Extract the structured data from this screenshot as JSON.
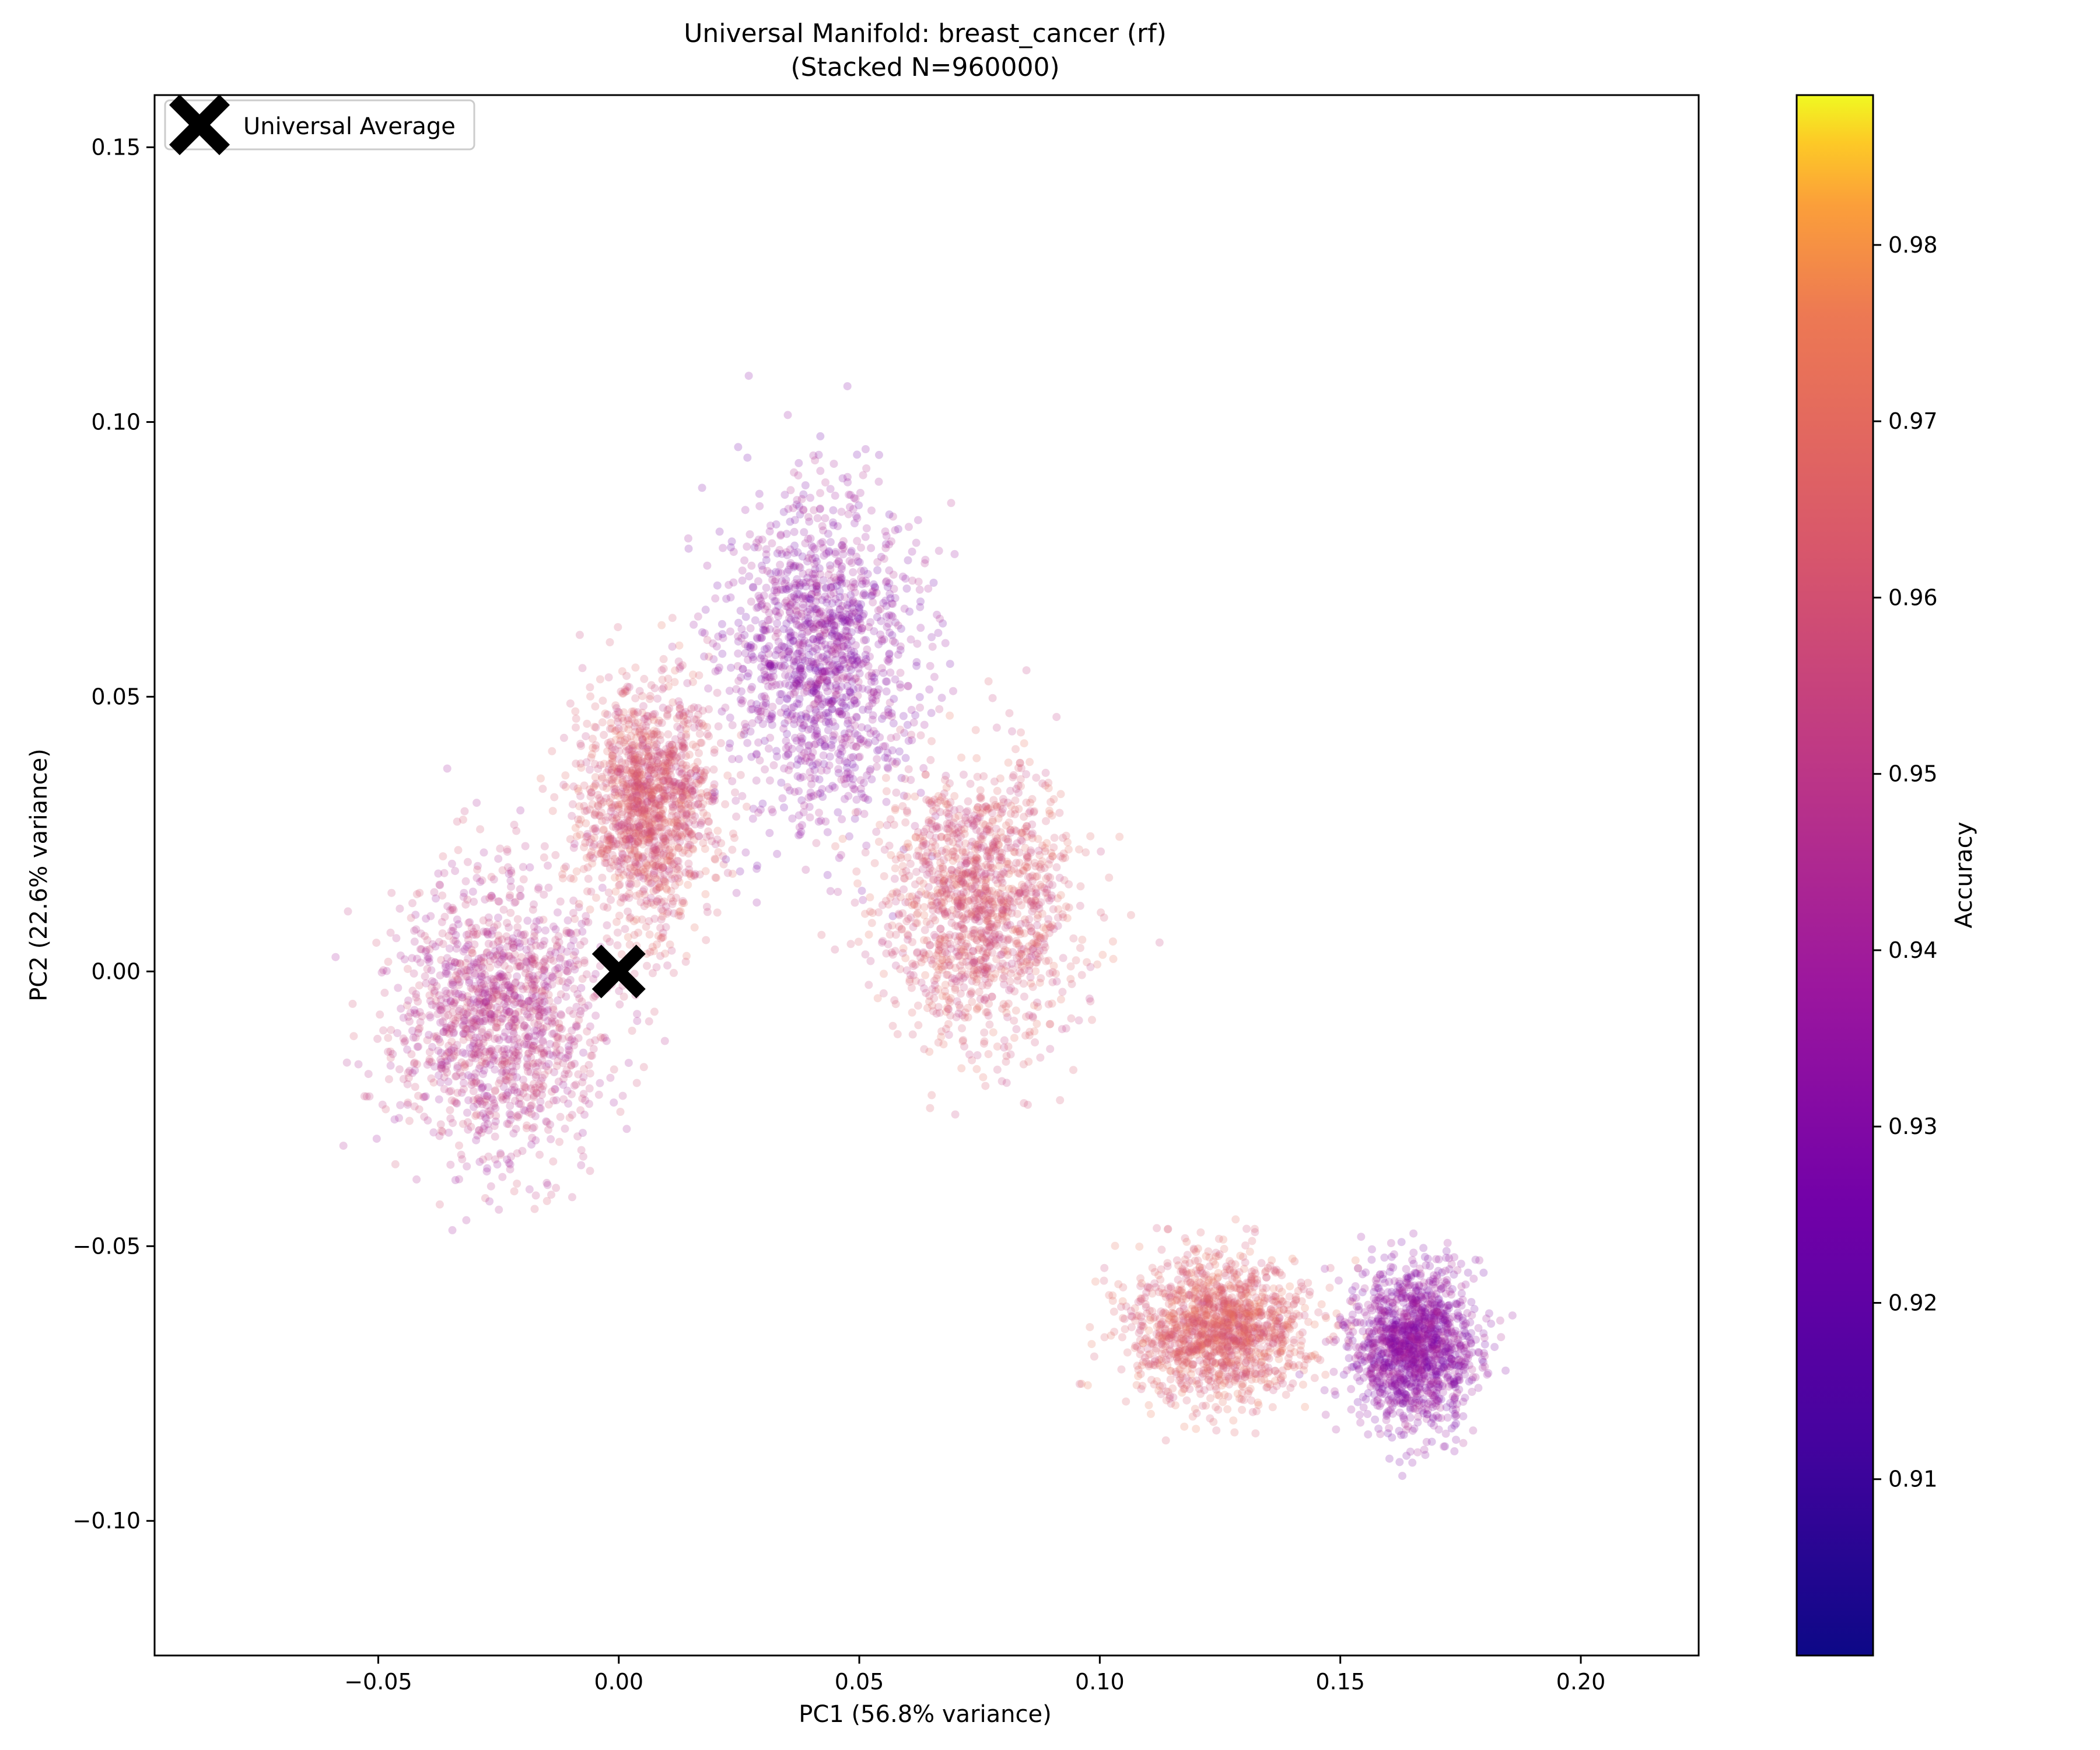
{
  "chart_data": {
    "type": "scatter",
    "title": "Universal Manifold: breast_cancer (rf)",
    "subtitle": "(Stacked N=960000)",
    "xlabel": "PC1 (56.8% variance)",
    "ylabel": "PC2 (22.6% variance)",
    "colorbar_label": "Accuracy",
    "colormap": "plasma",
    "xlim": [
      -0.0965,
      0.2245
    ],
    "ylim": [
      -0.1245,
      0.1595
    ],
    "x_ticks": [
      {
        "value": -0.05,
        "label": "−0.05"
      },
      {
        "value": 0.0,
        "label": "0.00"
      },
      {
        "value": 0.05,
        "label": "0.05"
      },
      {
        "value": 0.1,
        "label": "0.10"
      },
      {
        "value": 0.15,
        "label": "0.15"
      },
      {
        "value": 0.2,
        "label": "0.20"
      }
    ],
    "y_ticks": [
      {
        "value": -0.1,
        "label": "−0.10"
      },
      {
        "value": -0.05,
        "label": "−0.05"
      },
      {
        "value": 0.0,
        "label": "0.00"
      },
      {
        "value": 0.05,
        "label": "0.05"
      },
      {
        "value": 0.1,
        "label": "0.10"
      },
      {
        "value": 0.15,
        "label": "0.15"
      }
    ],
    "colorbar": {
      "range": [
        0.9,
        0.9885
      ],
      "ticks": [
        {
          "value": 0.91,
          "label": "0.91"
        },
        {
          "value": 0.92,
          "label": "0.92"
        },
        {
          "value": 0.93,
          "label": "0.93"
        },
        {
          "value": 0.94,
          "label": "0.94"
        },
        {
          "value": 0.95,
          "label": "0.95"
        },
        {
          "value": 0.96,
          "label": "0.96"
        },
        {
          "value": 0.97,
          "label": "0.97"
        },
        {
          "value": 0.98,
          "label": "0.98"
        }
      ]
    },
    "legend": {
      "placement": "upper-left",
      "entries": [
        "Universal Average"
      ]
    },
    "universal_average": {
      "name": "Universal Average",
      "x": 0.0,
      "y": 0.0,
      "marker": "X",
      "color": "#000000"
    },
    "clusters": [
      {
        "center": [
          -0.025,
          -0.008
        ],
        "spread": [
          0.022,
          0.026
        ],
        "accuracy_range": [
          0.938,
          0.962
        ]
      },
      {
        "center": [
          0.006,
          0.03
        ],
        "spread": [
          0.014,
          0.022
        ],
        "accuracy_range": [
          0.95,
          0.972
        ]
      },
      {
        "center": [
          0.042,
          0.058
        ],
        "spread": [
          0.02,
          0.03
        ],
        "accuracy_range": [
          0.924,
          0.948
        ]
      },
      {
        "center": [
          0.075,
          0.012
        ],
        "spread": [
          0.02,
          0.025
        ],
        "accuracy_range": [
          0.95,
          0.972
        ]
      },
      {
        "center": [
          0.125,
          -0.065
        ],
        "spread": [
          0.018,
          0.013
        ],
        "accuracy_range": [
          0.955,
          0.975
        ]
      },
      {
        "center": [
          0.165,
          -0.068
        ],
        "spread": [
          0.013,
          0.014
        ],
        "accuracy_range": [
          0.925,
          0.945
        ]
      }
    ]
  }
}
